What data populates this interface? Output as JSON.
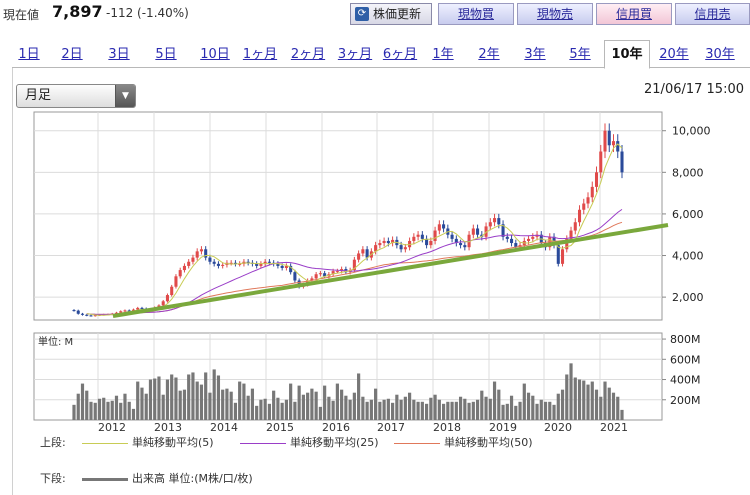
{
  "header": {
    "price_label": "現在値",
    "price_value": "7,897",
    "price_change": "-112 (-1.40%)",
    "refresh_label": "株価更新",
    "buttons": [
      "現物買",
      "現物売",
      "信用買",
      "信用売"
    ]
  },
  "tabs": [
    "1日",
    "2日",
    "3日",
    "5日",
    "10日",
    "1ヶ月",
    "2ヶ月",
    "3ヶ月",
    "6ヶ月",
    "1年",
    "2年",
    "3年",
    "5年",
    "10年",
    "20年",
    "30年"
  ],
  "active_tab": "10年",
  "period_select": "月足",
  "timestamp": "21/06/17 15:00",
  "colors": {
    "up": "#e04a4a",
    "down": "#2a4a9a",
    "ma5": "#c8cc55",
    "ma25": "#9a3ec8",
    "ma50": "#e0785a",
    "trend": "#7aa83c",
    "volume": "#777777"
  },
  "legend": {
    "upper_label": "上段:",
    "ma5": "単純移動平均(5)",
    "ma25": "単純移動平均(25)",
    "ma50": "単純移動平均(50)",
    "lower_label": "下段:",
    "volume": "出来高 単位:(M株/口/枚)"
  },
  "chart_data": {
    "type": "candlestick",
    "x_labels": [
      "2012",
      "2013",
      "2014",
      "2015",
      "2016",
      "2017",
      "2018",
      "2019",
      "2020",
      "2021"
    ],
    "price_ticks": [
      "2,000",
      "4,000",
      "6,000",
      "8,000",
      "10,000"
    ],
    "price_ylim": [
      900,
      10900
    ],
    "volume_unit_label": "単位: M",
    "volume_ticks": [
      "200M",
      "400M",
      "600M",
      "800M"
    ],
    "volume_ylim": [
      0,
      860
    ],
    "close": [
      1350,
      1200,
      1150,
      1120,
      1100,
      1130,
      1150,
      1160,
      1170,
      1200,
      1250,
      1320,
      1360,
      1330,
      1400,
      1480,
      1450,
      1380,
      1420,
      1500,
      1600,
      1800,
      2100,
      2500,
      3000,
      3300,
      3500,
      3700,
      3900,
      4200,
      4300,
      3900,
      3700,
      3600,
      3500,
      3550,
      3650,
      3650,
      3600,
      3600,
      3700,
      3650,
      3600,
      3500,
      3600,
      3700,
      3650,
      3600,
      3500,
      3400,
      3500,
      3200,
      2800,
      2500,
      2600,
      2800,
      2900,
      3100,
      3150,
      3000,
      3100,
      3250,
      3250,
      3350,
      3200,
      3300,
      3800,
      4100,
      4300,
      3900,
      4200,
      4500,
      4600,
      4700,
      4600,
      4750,
      4500,
      4300,
      4400,
      4700,
      4900,
      5000,
      4800,
      4500,
      4700,
      5200,
      5500,
      5300,
      5000,
      4800,
      4600,
      4500,
      4400,
      5000,
      5300,
      5000,
      4900,
      5400,
      5600,
      5800,
      5500,
      4900,
      4800,
      4600,
      4400,
      4500,
      4700,
      4800,
      4900,
      5000,
      4600,
      4400,
      4900,
      4500,
      3600,
      4300,
      4800,
      5200,
      5600,
      6200,
      6500,
      6800,
      7300,
      8000,
      9000,
      10000,
      9300,
      9500,
      9000,
      8000
    ],
    "volume": [
      150,
      260,
      360,
      290,
      180,
      170,
      210,
      220,
      180,
      190,
      240,
      170,
      260,
      180,
      110,
      380,
      320,
      260,
      400,
      410,
      430,
      250,
      400,
      450,
      420,
      290,
      300,
      450,
      470,
      380,
      350,
      470,
      270,
      500,
      440,
      300,
      310,
      280,
      170,
      380,
      360,
      240,
      310,
      140,
      200,
      210,
      160,
      290,
      220,
      170,
      200,
      360,
      180,
      340,
      250,
      270,
      310,
      280,
      130,
      340,
      230,
      190,
      360,
      300,
      240,
      200,
      270,
      460,
      230,
      180,
      200,
      310,
      180,
      200,
      210,
      170,
      250,
      200,
      230,
      270,
      200,
      180,
      180,
      160,
      220,
      250,
      200,
      160,
      180,
      180,
      180,
      230,
      210,
      170,
      180,
      200,
      290,
      230,
      210,
      380,
      300,
      150,
      160,
      240,
      140,
      180,
      360,
      270,
      240,
      160,
      200,
      180,
      180,
      150,
      260,
      300,
      450,
      560,
      420,
      400,
      390,
      350,
      380,
      300,
      230,
      380,
      320,
      270,
      230,
      100
    ]
  }
}
